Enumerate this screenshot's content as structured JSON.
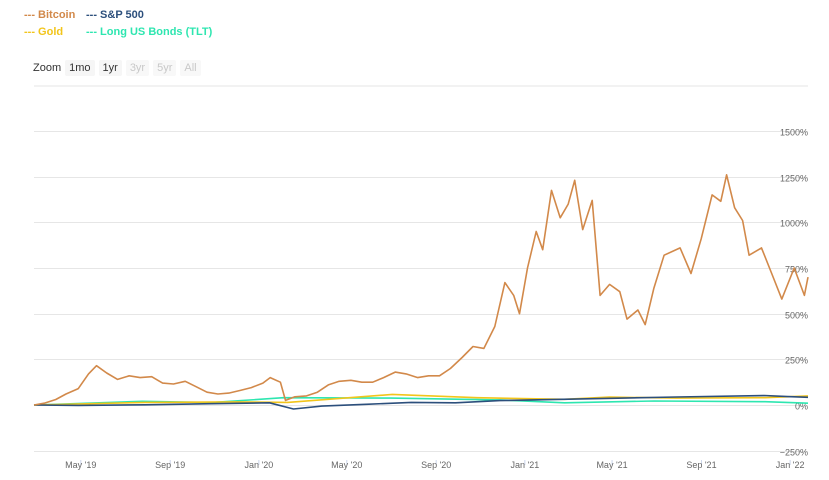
{
  "legend": [
    {
      "label": "--- Bitcoin",
      "color": "#d2894a"
    },
    {
      "label": "--- S&P 500",
      "color": "#2c4f7c"
    },
    {
      "label": "--- Gold",
      "color": "#f2c51b"
    },
    {
      "label": "--- Long US Bonds (TLT)",
      "color": "#2ee6b0"
    }
  ],
  "zoom": {
    "label": "Zoom",
    "buttons": [
      {
        "label": "1mo",
        "enabled": true
      },
      {
        "label": "1yr",
        "enabled": true
      },
      {
        "label": "3yr",
        "enabled": false
      },
      {
        "label": "5yr",
        "enabled": false
      },
      {
        "label": "All",
        "enabled": false
      }
    ]
  },
  "chart_data": {
    "type": "line",
    "x_ticks": [
      "May '19",
      "Sep '19",
      "Jan '20",
      "May '20",
      "Sep '20",
      "Jan '21",
      "May '21",
      "Sep '21",
      "Jan '22"
    ],
    "y_ticks": [
      {
        "value": 1500,
        "label": "1500%"
      },
      {
        "value": 1250,
        "label": "1250%"
      },
      {
        "value": 1000,
        "label": "1000%"
      },
      {
        "value": 750,
        "label": "750%"
      },
      {
        "value": 500,
        "label": "500%"
      },
      {
        "value": 250,
        "label": "250%"
      },
      {
        "value": 0,
        "label": "0%"
      },
      {
        "value": -250,
        "label": "−250%"
      }
    ],
    "xlim": [
      "2019-04-01",
      "2022-03-01"
    ],
    "ylim": [
      -250,
      1750
    ],
    "grid": true,
    "series": [
      {
        "name": "Bitcoin",
        "color": "#d2894a",
        "points": [
          [
            "2019-04-01",
            0
          ],
          [
            "2019-04-15",
            10
          ],
          [
            "2019-05-01",
            30
          ],
          [
            "2019-05-15",
            60
          ],
          [
            "2019-06-01",
            90
          ],
          [
            "2019-06-15",
            170
          ],
          [
            "2019-06-26",
            215
          ],
          [
            "2019-07-10",
            175
          ],
          [
            "2019-07-25",
            140
          ],
          [
            "2019-08-10",
            160
          ],
          [
            "2019-08-25",
            150
          ],
          [
            "2019-09-10",
            155
          ],
          [
            "2019-09-25",
            120
          ],
          [
            "2019-10-10",
            115
          ],
          [
            "2019-10-26",
            130
          ],
          [
            "2019-11-10",
            100
          ],
          [
            "2019-11-25",
            70
          ],
          [
            "2019-12-10",
            60
          ],
          [
            "2019-12-25",
            65
          ],
          [
            "2020-01-10",
            80
          ],
          [
            "2020-01-25",
            95
          ],
          [
            "2020-02-10",
            120
          ],
          [
            "2020-02-20",
            150
          ],
          [
            "2020-03-05",
            125
          ],
          [
            "2020-03-12",
            25
          ],
          [
            "2020-03-25",
            45
          ],
          [
            "2020-04-10",
            50
          ],
          [
            "2020-04-25",
            70
          ],
          [
            "2020-05-10",
            110
          ],
          [
            "2020-05-25",
            130
          ],
          [
            "2020-06-10",
            135
          ],
          [
            "2020-06-25",
            125
          ],
          [
            "2020-07-10",
            125
          ],
          [
            "2020-07-25",
            150
          ],
          [
            "2020-08-10",
            180
          ],
          [
            "2020-08-25",
            170
          ],
          [
            "2020-09-10",
            150
          ],
          [
            "2020-09-25",
            160
          ],
          [
            "2020-10-10",
            160
          ],
          [
            "2020-10-25",
            200
          ],
          [
            "2020-11-10",
            260
          ],
          [
            "2020-11-25",
            320
          ],
          [
            "2020-12-10",
            310
          ],
          [
            "2020-12-25",
            430
          ],
          [
            "2021-01-08",
            670
          ],
          [
            "2021-01-20",
            600
          ],
          [
            "2021-01-28",
            500
          ],
          [
            "2021-02-08",
            750
          ],
          [
            "2021-02-20",
            950
          ],
          [
            "2021-03-01",
            850
          ],
          [
            "2021-03-13",
            1175
          ],
          [
            "2021-03-25",
            1025
          ],
          [
            "2021-04-05",
            1100
          ],
          [
            "2021-04-14",
            1230
          ],
          [
            "2021-04-25",
            960
          ],
          [
            "2021-05-08",
            1120
          ],
          [
            "2021-05-19",
            600
          ],
          [
            "2021-06-01",
            660
          ],
          [
            "2021-06-15",
            620
          ],
          [
            "2021-06-25",
            470
          ],
          [
            "2021-07-10",
            520
          ],
          [
            "2021-07-20",
            440
          ],
          [
            "2021-08-01",
            640
          ],
          [
            "2021-08-15",
            820
          ],
          [
            "2021-09-06",
            860
          ],
          [
            "2021-09-21",
            720
          ],
          [
            "2021-10-05",
            910
          ],
          [
            "2021-10-20",
            1150
          ],
          [
            "2021-11-01",
            1115
          ],
          [
            "2021-11-09",
            1260
          ],
          [
            "2021-11-20",
            1080
          ],
          [
            "2021-12-01",
            1010
          ],
          [
            "2021-12-10",
            820
          ],
          [
            "2021-12-27",
            860
          ],
          [
            "2022-01-10",
            720
          ],
          [
            "2022-01-24",
            580
          ],
          [
            "2022-02-10",
            750
          ],
          [
            "2022-02-24",
            600
          ],
          [
            "2022-03-01",
            700
          ]
        ]
      },
      {
        "name": "S&P 500",
        "color": "#2c4f7c",
        "points": [
          [
            "2019-04-01",
            0
          ],
          [
            "2019-06-01",
            -2
          ],
          [
            "2019-09-01",
            1
          ],
          [
            "2019-12-01",
            7
          ],
          [
            "2020-02-19",
            12
          ],
          [
            "2020-03-23",
            -22
          ],
          [
            "2020-05-01",
            -6
          ],
          [
            "2020-07-01",
            4
          ],
          [
            "2020-09-01",
            14
          ],
          [
            "2020-11-01",
            12
          ],
          [
            "2021-01-01",
            24
          ],
          [
            "2021-05-01",
            34
          ],
          [
            "2021-09-01",
            44
          ],
          [
            "2021-12-31",
            52
          ],
          [
            "2022-02-01",
            46
          ],
          [
            "2022-03-01",
            42
          ]
        ]
      },
      {
        "name": "Gold",
        "color": "#f2c51b",
        "points": [
          [
            "2019-04-01",
            0
          ],
          [
            "2019-09-01",
            14
          ],
          [
            "2020-01-01",
            17
          ],
          [
            "2020-03-15",
            14
          ],
          [
            "2020-08-06",
            58
          ],
          [
            "2020-12-01",
            40
          ],
          [
            "2021-03-31",
            31
          ],
          [
            "2021-06-01",
            43
          ],
          [
            "2021-09-01",
            38
          ],
          [
            "2022-01-01",
            40
          ],
          [
            "2022-03-01",
            50
          ]
        ]
      },
      {
        "name": "Long US Bonds (TLT)",
        "color": "#2ee6b0",
        "points": [
          [
            "2019-04-01",
            0
          ],
          [
            "2019-08-28",
            20
          ],
          [
            "2019-12-01",
            13
          ],
          [
            "2020-03-09",
            40
          ],
          [
            "2020-08-04",
            38
          ],
          [
            "2021-01-01",
            28
          ],
          [
            "2021-03-31",
            12
          ],
          [
            "2021-08-01",
            22
          ],
          [
            "2022-01-01",
            18
          ],
          [
            "2022-03-01",
            10
          ]
        ]
      }
    ]
  }
}
